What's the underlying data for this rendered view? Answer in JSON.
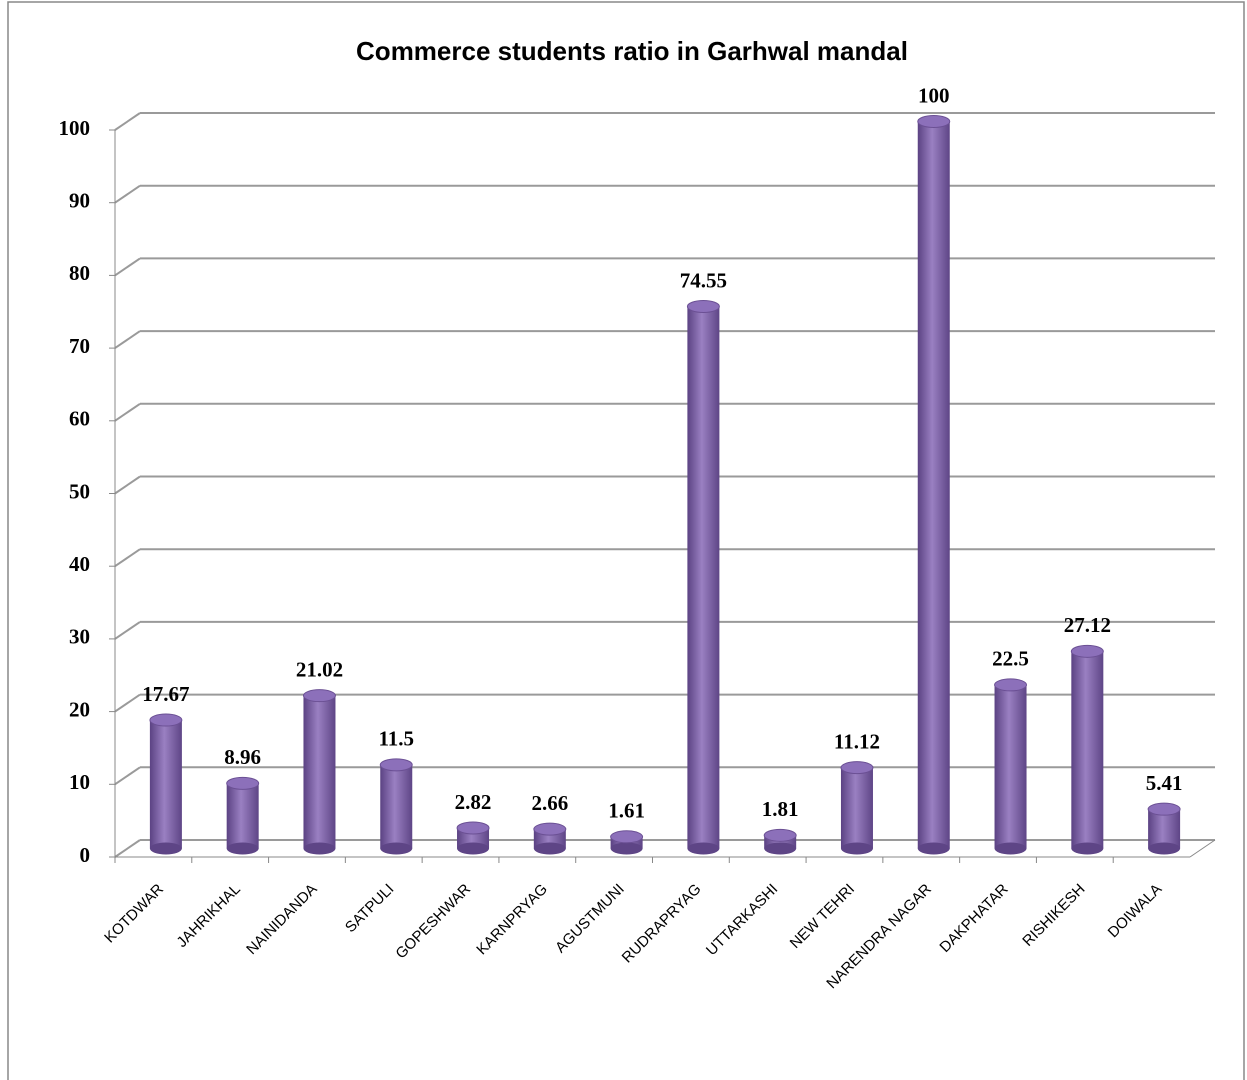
{
  "chart_data": {
    "type": "bar",
    "title": "Commerce students ratio in Garhwal mandal",
    "categories": [
      "KOTDWAR",
      "JAHRIKHAL",
      "NAINIDANDA",
      "SATPULI",
      "GOPESHWAR",
      "KARNPRYAG",
      "AGUSTMUNI",
      "RUDRAPRYAG",
      "UTTARKASHI",
      "NEW TEHRI",
      "NARENDRA NAGAR",
      "DAKPHATAR",
      "RISHIKESH",
      "DOIWALA"
    ],
    "values": [
      17.67,
      8.96,
      21.02,
      11.5,
      2.82,
      2.66,
      1.61,
      74.55,
      1.81,
      11.12,
      100,
      22.5,
      27.12,
      5.41
    ],
    "color": "#8064a2",
    "ylim": [
      0,
      100
    ],
    "yticks": [
      0,
      10,
      20,
      30,
      40,
      50,
      60,
      70,
      80,
      90,
      100
    ],
    "grid": true
  }
}
